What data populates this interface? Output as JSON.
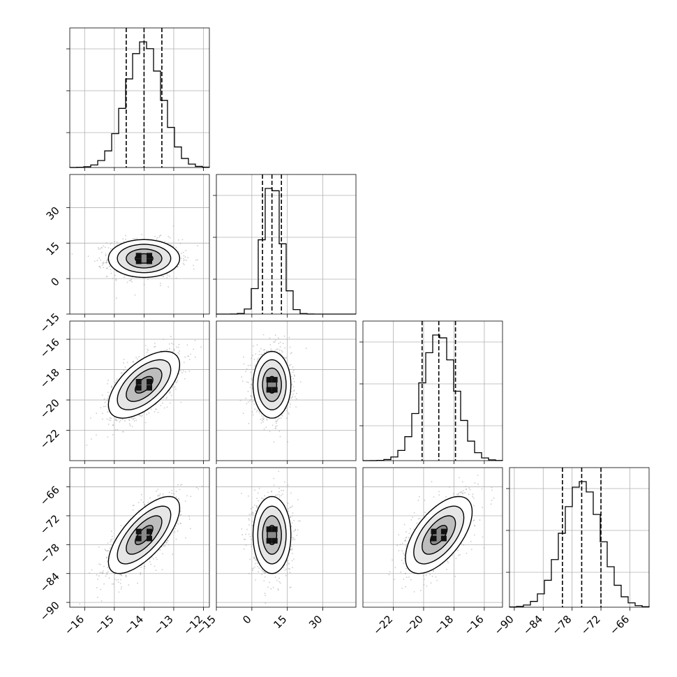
{
  "chart_data": {
    "type": "scatter",
    "title": "",
    "grid": true,
    "variables": [
      {
        "index": 0,
        "range": [
          -16.5,
          -11.8
        ],
        "median": -14.0,
        "q16": -14.6,
        "q84": -13.4,
        "std": 0.6,
        "ticks": [
          "−16",
          "−15",
          "−14",
          "−13",
          "−12"
        ],
        "tick_values": [
          -16,
          -15,
          -14,
          -13,
          -12
        ]
      },
      {
        "index": 1,
        "range": [
          -15,
          44
        ],
        "median": 8.5,
        "q16": 4.5,
        "q84": 12.5,
        "std": 4.0,
        "ticks": [
          "−15",
          "0",
          "15",
          "30"
        ],
        "tick_values": [
          -15,
          0,
          15,
          30
        ]
      },
      {
        "index": 2,
        "range": [
          -24,
          -14.8
        ],
        "median": -19.0,
        "q16": -20.1,
        "q84": -17.9,
        "std": 1.1,
        "ticks": [
          "−22",
          "−20",
          "−18",
          "−16"
        ],
        "tick_values": [
          -22,
          -20,
          -18,
          -16
        ]
      },
      {
        "index": 3,
        "range": [
          -91,
          -62
        ],
        "median": -76.0,
        "q16": -80.0,
        "q84": -72.0,
        "std": 4.0,
        "ticks": [
          "−90",
          "−84",
          "−78",
          "−72",
          "−66"
        ],
        "tick_values": [
          -90,
          -84,
          -78,
          -72,
          -66
        ]
      }
    ],
    "correlations": [
      {
        "pair": [
          0,
          1
        ],
        "rho": 0.0
      },
      {
        "pair": [
          0,
          2
        ],
        "rho": 0.6
      },
      {
        "pair": [
          1,
          2
        ],
        "rho": 0.0
      },
      {
        "pair": [
          0,
          3
        ],
        "rho": 0.7
      },
      {
        "pair": [
          1,
          3
        ],
        "rho": 0.0
      },
      {
        "pair": [
          2,
          3
        ],
        "rho": 0.6
      }
    ],
    "quantile_lines": [
      0.16,
      0.5,
      0.84
    ],
    "contour_levels_sigma": [
      0.5,
      1.0,
      1.5,
      2.0
    ]
  }
}
